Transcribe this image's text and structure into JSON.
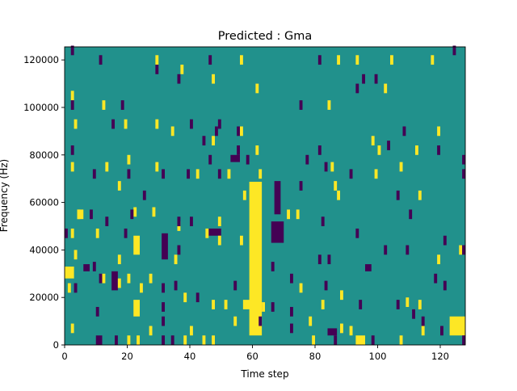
{
  "chart_data": {
    "type": "heatmap",
    "title": "Predicted : Gma",
    "xlabel": "Time step",
    "ylabel": "Frequency (Hz)",
    "xlim": [
      0,
      128
    ],
    "ylim": [
      0,
      125500
    ],
    "xticks": [
      0,
      20,
      40,
      60,
      80,
      100,
      120
    ],
    "xtick_labels": [
      "0",
      "20",
      "40",
      "60",
      "80",
      "100",
      "120"
    ],
    "yticks": [
      0,
      20000,
      40000,
      60000,
      80000,
      100000,
      120000
    ],
    "ytick_labels": [
      "0",
      "20000",
      "40000",
      "60000",
      "80000",
      "100000",
      "120000"
    ],
    "colors": {
      "background": "#21918c",
      "high": "#fde725",
      "low": "#440154"
    },
    "mark_height_hz": 4000,
    "blocks": [
      {
        "t": [
          59,
          63
        ],
        "f": [
          4000,
          68700
        ],
        "value": "high"
      },
      {
        "t": [
          22,
          24
        ],
        "f": [
          38000,
          46000
        ],
        "value": "high"
      },
      {
        "t": [
          22,
          24
        ],
        "f": [
          12000,
          19000
        ],
        "value": "high"
      },
      {
        "t": [
          0,
          3
        ],
        "f": [
          28000,
          33000
        ],
        "value": "high"
      },
      {
        "t": [
          4,
          6
        ],
        "f": [
          53000,
          57000
        ],
        "value": "high"
      },
      {
        "t": [
          123,
          128
        ],
        "f": [
          4000,
          12000
        ],
        "value": "high"
      },
      {
        "t": [
          93,
          96
        ],
        "f": [
          0,
          4000
        ],
        "value": "high"
      },
      {
        "t": [
          57,
          60
        ],
        "f": [
          15000,
          19000
        ],
        "value": "high"
      },
      {
        "t": [
          66,
          70
        ],
        "f": [
          43000,
          52000
        ],
        "value": "low"
      },
      {
        "t": [
          67,
          69
        ],
        "f": [
          55000,
          69000
        ],
        "value": "low"
      },
      {
        "t": [
          46,
          50
        ],
        "f": [
          46000,
          49000
        ],
        "value": "low"
      },
      {
        "t": [
          53,
          56
        ],
        "f": [
          77000,
          80000
        ],
        "value": "low"
      },
      {
        "t": [
          84,
          87
        ],
        "f": [
          4000,
          7000
        ],
        "value": "low"
      },
      {
        "t": [
          96,
          98
        ],
        "f": [
          31000,
          34000
        ],
        "value": "low"
      },
      {
        "t": [
          6,
          8
        ],
        "f": [
          31000,
          34000
        ],
        "value": "low"
      },
      {
        "t": [
          15,
          17
        ],
        "f": [
          23000,
          31000
        ],
        "value": "low"
      },
      {
        "t": [
          31,
          33
        ],
        "f": [
          36000,
          47000
        ],
        "value": "low"
      },
      {
        "t": [
          10,
          12
        ],
        "f": [
          0,
          4000
        ],
        "value": "low"
      }
    ],
    "high_marks": [
      [
        29,
        120000
      ],
      [
        56,
        120000
      ],
      [
        87,
        120000
      ],
      [
        93,
        120000
      ],
      [
        104,
        120000
      ],
      [
        117,
        120000
      ],
      [
        37,
        116000
      ],
      [
        47,
        112000
      ],
      [
        61,
        108000
      ],
      [
        102,
        108000
      ],
      [
        2,
        105000
      ],
      [
        12,
        101000
      ],
      [
        84,
        101000
      ],
      [
        3,
        93000
      ],
      [
        19,
        93000
      ],
      [
        29,
        93000
      ],
      [
        34,
        90000
      ],
      [
        56,
        90000
      ],
      [
        119,
        90000
      ],
      [
        47,
        86000
      ],
      [
        61,
        82000
      ],
      [
        98,
        86000
      ],
      [
        100,
        82000
      ],
      [
        112,
        82000
      ],
      [
        20,
        78000
      ],
      [
        2,
        75000
      ],
      [
        13,
        75000
      ],
      [
        29,
        75000
      ],
      [
        42,
        72000
      ],
      [
        52,
        72000
      ],
      [
        62,
        72000
      ],
      [
        85,
        75000
      ],
      [
        99,
        72000
      ],
      [
        107,
        75000
      ],
      [
        17,
        67000
      ],
      [
        86,
        67000
      ],
      [
        87,
        63000
      ],
      [
        113,
        63000
      ],
      [
        57,
        63000
      ],
      [
        22,
        56000
      ],
      [
        28,
        56000
      ],
      [
        71,
        55000
      ],
      [
        74,
        55000
      ],
      [
        4,
        55000
      ],
      [
        36,
        50000
      ],
      [
        49,
        52000
      ],
      [
        10,
        47000
      ],
      [
        45,
        47000
      ],
      [
        2,
        47000
      ],
      [
        56,
        44000
      ],
      [
        35,
        36000
      ],
      [
        49,
        44000
      ],
      [
        126,
        40000
      ],
      [
        119,
        36000
      ],
      [
        3,
        38000
      ],
      [
        17,
        36000
      ],
      [
        20,
        28000
      ],
      [
        27,
        28000
      ],
      [
        12,
        28000
      ],
      [
        75,
        24000
      ],
      [
        88,
        21000
      ],
      [
        24,
        24000
      ],
      [
        17,
        26000
      ],
      [
        1,
        24000
      ],
      [
        38,
        20000
      ],
      [
        47,
        17000
      ],
      [
        51,
        17000
      ],
      [
        63,
        16000
      ],
      [
        82,
        17000
      ],
      [
        109,
        18000
      ],
      [
        113,
        17000
      ],
      [
        2,
        7000
      ],
      [
        40,
        6000
      ],
      [
        54,
        10000
      ],
      [
        78,
        10000
      ],
      [
        88,
        7000
      ],
      [
        91,
        6000
      ],
      [
        20,
        2000
      ],
      [
        23,
        2000
      ],
      [
        27,
        6000
      ],
      [
        38,
        2000
      ],
      [
        44,
        2000
      ],
      [
        47,
        2000
      ],
      [
        79,
        2000
      ],
      [
        107,
        2000
      ],
      [
        114,
        6000
      ]
    ],
    "low_marks": [
      [
        2,
        124000
      ],
      [
        11,
        120000
      ],
      [
        46,
        120000
      ],
      [
        81,
        120000
      ],
      [
        124,
        124000
      ],
      [
        29,
        116000
      ],
      [
        36,
        112000
      ],
      [
        95,
        112000
      ],
      [
        99,
        112000
      ],
      [
        93,
        108000
      ],
      [
        2,
        101000
      ],
      [
        18,
        101000
      ],
      [
        75,
        101000
      ],
      [
        15,
        93000
      ],
      [
        40,
        93000
      ],
      [
        49,
        93000
      ],
      [
        48,
        90000
      ],
      [
        55,
        90000
      ],
      [
        108,
        90000
      ],
      [
        44,
        86000
      ],
      [
        103,
        84000
      ],
      [
        2,
        82000
      ],
      [
        55,
        82000
      ],
      [
        81,
        82000
      ],
      [
        119,
        82000
      ],
      [
        46,
        78000
      ],
      [
        58,
        78000
      ],
      [
        77,
        78000
      ],
      [
        127,
        78000
      ],
      [
        9,
        72000
      ],
      [
        20,
        72000
      ],
      [
        31,
        72000
      ],
      [
        39,
        72000
      ],
      [
        49,
        72000
      ],
      [
        83,
        75000
      ],
      [
        91,
        72000
      ],
      [
        127,
        72000
      ],
      [
        75,
        67000
      ],
      [
        25,
        63000
      ],
      [
        106,
        63000
      ],
      [
        8,
        55000
      ],
      [
        21,
        55000
      ],
      [
        110,
        55000
      ],
      [
        13,
        52000
      ],
      [
        36,
        52000
      ],
      [
        40,
        52000
      ],
      [
        82,
        52000
      ],
      [
        0,
        47000
      ],
      [
        19,
        47000
      ],
      [
        93,
        47000
      ],
      [
        121,
        44000
      ],
      [
        36,
        40000
      ],
      [
        102,
        40000
      ],
      [
        109,
        40000
      ],
      [
        81,
        36000
      ],
      [
        84,
        36000
      ],
      [
        127,
        40000
      ],
      [
        9,
        33000
      ],
      [
        66,
        33000
      ],
      [
        11,
        28000
      ],
      [
        118,
        28000
      ],
      [
        3,
        24000
      ],
      [
        31,
        24000
      ],
      [
        35,
        25000
      ],
      [
        54,
        25000
      ],
      [
        72,
        28000
      ],
      [
        83,
        25000
      ],
      [
        121,
        25000
      ],
      [
        10,
        14000
      ],
      [
        31,
        16000
      ],
      [
        42,
        20000
      ],
      [
        66,
        16000
      ],
      [
        72,
        14000
      ],
      [
        94,
        17000
      ],
      [
        106,
        17000
      ],
      [
        111,
        13000
      ],
      [
        72,
        7000
      ],
      [
        31,
        10000
      ],
      [
        62,
        10000
      ],
      [
        114,
        10000
      ],
      [
        120,
        6000
      ],
      [
        16,
        2000
      ],
      [
        31,
        2000
      ],
      [
        34,
        2000
      ],
      [
        86,
        2000
      ],
      [
        98,
        2000
      ],
      [
        127,
        2000
      ]
    ]
  }
}
